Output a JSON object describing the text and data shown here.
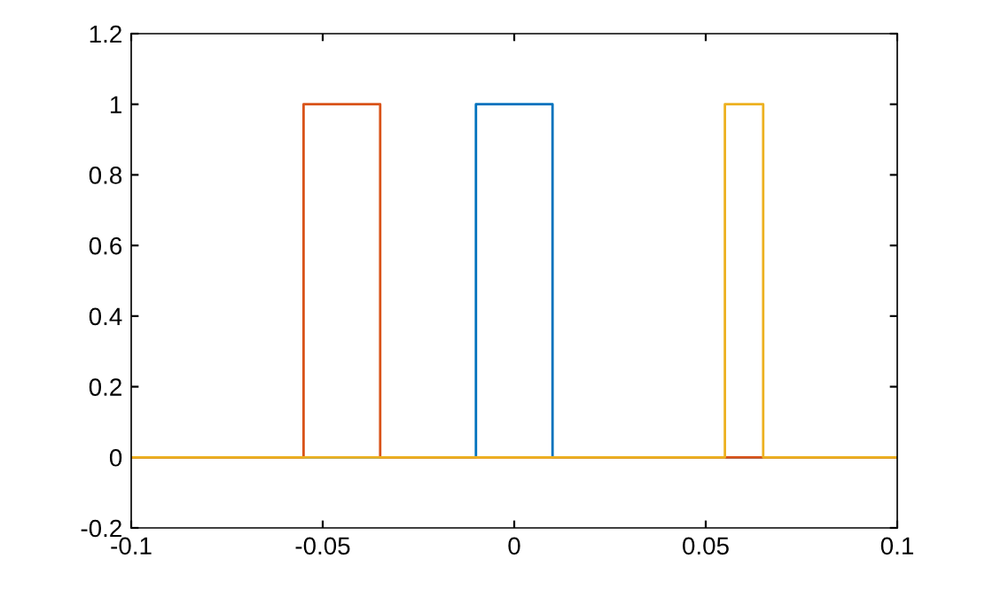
{
  "chart_data": {
    "type": "line",
    "series": [
      {
        "color": "#0072bd",
        "x": [
          -0.1,
          -0.01,
          -0.01,
          0.01,
          0.01,
          0.1
        ],
        "values": [
          0,
          0,
          1,
          1,
          0,
          0
        ]
      },
      {
        "color": "#d95319",
        "x": [
          -0.1,
          -0.055,
          -0.055,
          -0.035,
          -0.035,
          0.1
        ],
        "values": [
          0,
          0,
          1,
          1,
          0,
          0
        ]
      },
      {
        "color": "#edb120",
        "x": [
          -0.1,
          0.055,
          0.055,
          0.065,
          0.065,
          0.1
        ],
        "values": [
          0,
          0,
          1,
          1,
          0,
          0
        ]
      }
    ],
    "xlim": [
      -0.1,
      0.1
    ],
    "xticks": [
      -0.1,
      -0.05,
      0,
      0.05,
      0.1
    ],
    "ylim": [
      -0.2,
      1.2
    ],
    "yticks": [
      -0.2,
      0,
      0.2,
      0.4,
      0.6,
      0.8,
      1,
      1.2
    ],
    "grid": false,
    "line_style": "solid",
    "marker": "none"
  }
}
